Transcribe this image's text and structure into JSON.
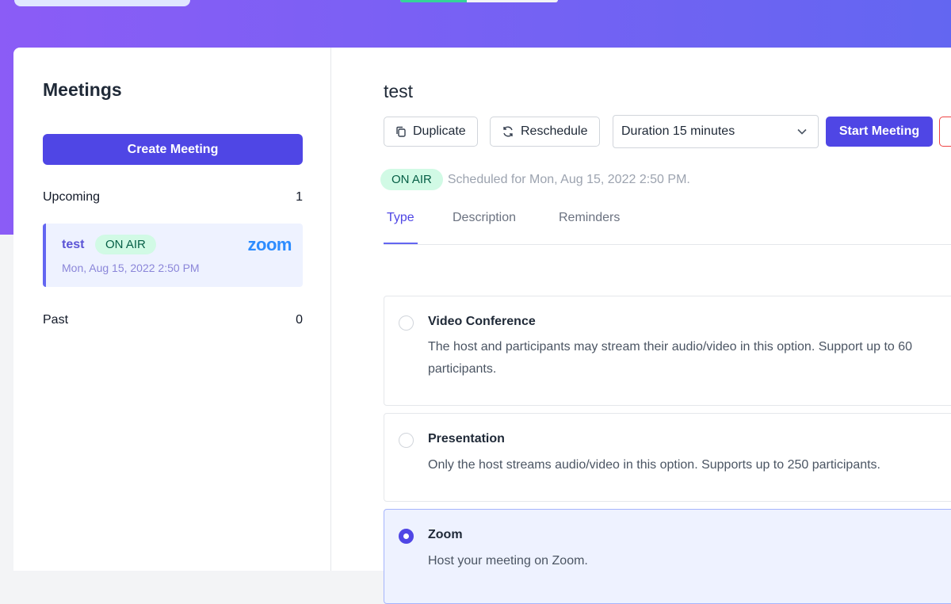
{
  "top": {
    "progress": 0.42
  },
  "sidebar": {
    "title": "Meetings",
    "create_label": "Create Meeting",
    "upcoming_label": "Upcoming",
    "upcoming_count": "1",
    "past_label": "Past",
    "past_count": "0",
    "meeting": {
      "name": "test",
      "badge": "ON AIR",
      "date": "Mon, Aug 15, 2022 2:50 PM",
      "provider": "zoom"
    }
  },
  "main": {
    "title": "test",
    "duplicate_label": "Duplicate",
    "reschedule_label": "Reschedule",
    "duration_value": "Duration 15 minutes",
    "start_label": "Start Meeting",
    "badge": "ON AIR",
    "scheduled": "Scheduled for Mon, Aug 15, 2022 2:50 PM.",
    "tabs": [
      {
        "label": "Type"
      },
      {
        "label": "Description"
      },
      {
        "label": "Reminders"
      }
    ],
    "options": [
      {
        "title": "Video Conference",
        "desc": "The host and participants may stream their audio/video in this option. Support up to 60 participants.",
        "selected": false
      },
      {
        "title": "Presentation",
        "desc": "Only the host streams audio/video in this option. Supports up to 250 participants.",
        "selected": false
      },
      {
        "title": "Zoom",
        "desc": "Host your meeting on Zoom.",
        "selected": true
      }
    ]
  },
  "colors": {
    "accent": "#4f46e5",
    "on_air_bg": "#d1fae5",
    "zoom_blue": "#2d8cff"
  }
}
